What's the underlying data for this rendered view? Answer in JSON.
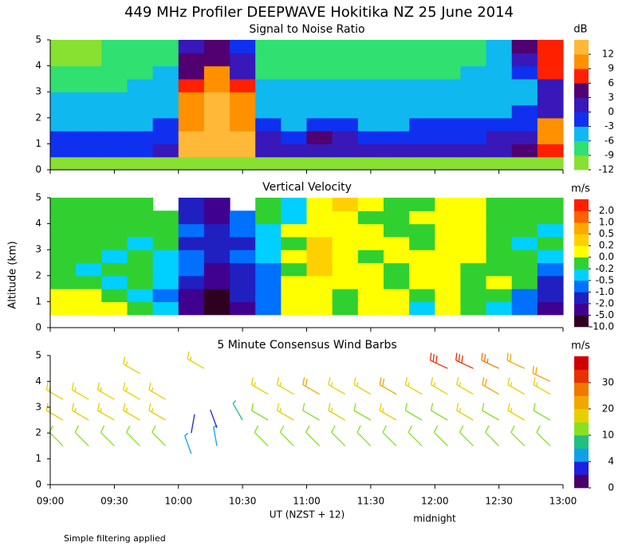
{
  "title": "449 MHz Profiler DEEPWAVE Hokitika NZ 25 June 2014",
  "y_label": "Altitude (km)",
  "x_label": "UT  (NZST + 12)",
  "annotation": "midnight",
  "note": "Simple filtering applied",
  "chart_data": [
    {
      "type": "heatmap",
      "title": "Signal to Noise Ratio",
      "unit": "dB",
      "xlim": [
        9,
        13
      ],
      "ylim": [
        0,
        5
      ],
      "xticks": [
        9,
        9.5,
        10,
        10.5,
        11,
        11.5,
        12,
        12.5,
        13
      ],
      "yticks": [
        0,
        1,
        2,
        3,
        4,
        5
      ],
      "x": [
        9.1,
        9.3,
        9.5,
        9.7,
        9.9,
        10.1,
        10.3,
        10.5,
        10.7,
        10.9,
        11.1,
        11.3,
        11.5,
        11.7,
        11.9,
        12.1,
        12.3,
        12.5,
        12.7,
        12.9
      ],
      "y": [
        0.25,
        0.75,
        1.25,
        1.75,
        2.25,
        2.75,
        3.25,
        3.75,
        4.25,
        4.75
      ],
      "values": [
        [
          -10,
          -10,
          -10,
          -10,
          -10,
          -10,
          -10,
          -10,
          -10,
          -10,
          -10,
          -10,
          -10,
          -10,
          -10,
          -10,
          -10,
          -10,
          -10,
          -10
        ],
        [
          -1,
          -1,
          -1,
          -1,
          0,
          12,
          13,
          13,
          2,
          1,
          2,
          1,
          0,
          0,
          1,
          1,
          1,
          2,
          3,
          6
        ],
        [
          -2,
          -2,
          -2,
          -2,
          -1,
          12,
          13,
          12,
          0,
          -1,
          4,
          0,
          -2,
          -2,
          -1,
          -1,
          -1,
          0,
          2,
          10
        ],
        [
          -4,
          -4,
          -4,
          -4,
          -3,
          11,
          12,
          11,
          -3,
          -4,
          -1,
          -3,
          -4,
          -4,
          -3,
          -3,
          -3,
          -3,
          -2,
          10
        ],
        [
          -5,
          -5,
          -5,
          -5,
          -4,
          10,
          12,
          10,
          -4,
          -5,
          -5,
          -5,
          -5,
          -5,
          -5,
          -5,
          -5,
          -4,
          -3,
          1
        ],
        [
          -5,
          -6,
          -5,
          -5,
          -4,
          9,
          12,
          9,
          -4,
          -5,
          -5,
          -5,
          -5,
          -5,
          -5,
          -5,
          -5,
          -5,
          -4,
          0
        ],
        [
          -7,
          -7,
          -7,
          -6,
          -5,
          7,
          11,
          6,
          -6,
          -6,
          -6,
          -6,
          -6,
          -6,
          -6,
          -6,
          -6,
          -5,
          -4,
          1
        ],
        [
          -8,
          -9,
          -8,
          -8,
          -6,
          4,
          9,
          2,
          -7,
          -8,
          -7,
          -7,
          -7,
          -7,
          -7,
          -7,
          -6,
          -5,
          -2,
          6
        ],
        [
          -10,
          -10,
          -9,
          -8,
          -7,
          3,
          5,
          0,
          -8,
          -8,
          -8,
          -8,
          -8,
          -8,
          -8,
          -8,
          -7,
          -6,
          2,
          8
        ],
        [
          -10,
          -10,
          -9,
          -8,
          -7,
          2,
          3,
          -1,
          -8,
          -8,
          -8,
          -8,
          -8,
          -8,
          -8,
          -8,
          -7,
          -6,
          4,
          8
        ]
      ],
      "colorbar": {
        "levels": [
          -12,
          -9,
          -6,
          -3,
          0,
          3,
          6,
          9,
          12
        ],
        "colors": [
          "#88e030",
          "#30e070",
          "#10b8f0",
          "#1030f0",
          "#3818b8",
          "#500070",
          "#ff2000",
          "#ff9000",
          "#ffb838"
        ],
        "ticks": [
          -12,
          -9,
          -6,
          -3,
          0,
          3,
          6,
          9,
          12
        ]
      }
    },
    {
      "type": "heatmap",
      "title": "Vertical Velocity",
      "unit": "m/s",
      "xlim": [
        9,
        13
      ],
      "ylim": [
        0,
        5
      ],
      "xticks": [
        9,
        9.5,
        10,
        10.5,
        11,
        11.5,
        12,
        12.5,
        13
      ],
      "yticks": [
        0,
        1,
        2,
        3,
        4,
        5
      ],
      "x": [
        9.1,
        9.3,
        9.5,
        9.7,
        9.9,
        10.1,
        10.3,
        10.5,
        10.7,
        10.9,
        11.1,
        11.3,
        11.5,
        11.7,
        11.9,
        12.1,
        12.3,
        12.5,
        12.7,
        12.9
      ],
      "y": [
        0.25,
        0.75,
        1.25,
        1.75,
        2.25,
        2.75,
        3.25,
        3.75,
        4.25,
        4.75
      ],
      "values": [
        [
          null,
          null,
          null,
          null,
          null,
          null,
          null,
          null,
          null,
          null,
          null,
          null,
          null,
          null,
          null,
          null,
          null,
          null,
          null,
          null
        ],
        [
          0.1,
          0.1,
          0.0,
          -0.1,
          -0.3,
          -3,
          -12,
          -3,
          -1,
          0.1,
          0.0,
          -0.1,
          0.1,
          0.0,
          -0.3,
          0.1,
          -0.1,
          -0.3,
          -1,
          -3
        ],
        [
          0.1,
          0.0,
          -0.1,
          -0.3,
          -0.6,
          -3,
          -6,
          -2,
          -0.7,
          0.1,
          0.1,
          -0.1,
          0.1,
          0.0,
          -0.1,
          0.1,
          -0.1,
          -0.1,
          -0.6,
          -2
        ],
        [
          -0.1,
          -0.1,
          -0.3,
          -0.1,
          -0.5,
          -1.5,
          -3,
          -1.5,
          -0.6,
          0.1,
          0.1,
          0.1,
          0.1,
          -0.1,
          0.1,
          0.1,
          -0.1,
          0.1,
          -0.1,
          -1.5
        ],
        [
          -0.1,
          -0.3,
          -0.1,
          -0.1,
          -0.3,
          -0.8,
          -3,
          -1.5,
          -0.6,
          -0.1,
          0.3,
          0.1,
          0.1,
          -0.1,
          0.1,
          0.1,
          -0.1,
          -0.1,
          -0.1,
          -0.8
        ],
        [
          -0.1,
          -0.1,
          -0.3,
          -0.1,
          -0.3,
          -0.8,
          -1.5,
          -0.8,
          -0.3,
          0.1,
          0.3,
          0.1,
          -0.1,
          0.1,
          0.1,
          0.1,
          0.1,
          -0.1,
          -0.1,
          -0.3
        ],
        [
          -0.1,
          -0.1,
          -0.1,
          -0.3,
          -0.1,
          -1.5,
          -2,
          -1.2,
          -0.3,
          -0.1,
          0.3,
          0.1,
          0.1,
          0.1,
          -0.1,
          0.1,
          0.1,
          -0.1,
          -0.3,
          -0.1
        ],
        [
          -0.1,
          -0.1,
          -0.1,
          -0.1,
          -0.1,
          -0.8,
          -1.5,
          -0.6,
          -0.3,
          0.1,
          0.1,
          0.1,
          0.1,
          -0.1,
          -0.1,
          0.1,
          0.1,
          -0.1,
          -0.1,
          -0.3
        ],
        [
          -0.1,
          -0.1,
          -0.1,
          -0.1,
          -0.1,
          -1.5,
          -3,
          -0.6,
          -0.1,
          -0.3,
          0.1,
          0.1,
          -0.1,
          -0.1,
          0.1,
          0.1,
          0.1,
          -0.1,
          -0.1,
          -0.1
        ],
        [
          -0.1,
          -0.1,
          -0.1,
          -0.1,
          null,
          -1.5,
          -3,
          null,
          -0.1,
          -0.3,
          0.1,
          0.3,
          0.1,
          -0.1,
          -0.1,
          0.1,
          0.1,
          -0.1,
          -0.1,
          -0.1
        ]
      ],
      "colorbar": {
        "levels": [
          -10,
          -5,
          -2,
          -1,
          -0.5,
          -0.2,
          0,
          0.2,
          0.5,
          1,
          2
        ],
        "colors": [
          "#300020",
          "#400090",
          "#2020c0",
          "#0070ff",
          "#00d0ff",
          "#30d030",
          "#ffff00",
          "#ffd000",
          "#ffa800",
          "#ff6000",
          "#ff2000"
        ],
        "ticks": [
          {
            "value": -10,
            "label": "-10.0"
          },
          {
            "value": -5,
            "label": "-5.0"
          },
          {
            "value": -2,
            "label": "-2.0"
          },
          {
            "value": -1,
            "label": "-1.0"
          },
          {
            "value": -0.5,
            "label": "-0.5"
          },
          {
            "value": -0.2,
            "label": "-0.2"
          },
          {
            "value": 0,
            "label": "0.0"
          },
          {
            "value": 0.2,
            "label": "0.2"
          },
          {
            "value": 0.5,
            "label": "0.5"
          },
          {
            "value": 1,
            "label": "1.0"
          },
          {
            "value": 2,
            "label": "2.0"
          }
        ]
      }
    },
    {
      "type": "barbs",
      "title": "5 Minute Consensus Wind Barbs",
      "unit": "m/s",
      "xlim": [
        9,
        13
      ],
      "ylim": [
        0,
        5
      ],
      "yticks": [
        0,
        1,
        2,
        3,
        4,
        5
      ],
      "xticks": [
        {
          "value": 9,
          "label": "09:00"
        },
        {
          "value": 9.5,
          "label": "09:30"
        },
        {
          "value": 10,
          "label": "10:00"
        },
        {
          "value": 10.5,
          "label": "10:30"
        },
        {
          "value": 11,
          "label": "11:00"
        },
        {
          "value": 11.5,
          "label": "11:30"
        },
        {
          "value": 12,
          "label": "12:00"
        },
        {
          "value": 12.5,
          "label": "12:30"
        },
        {
          "value": 13,
          "label": "13:00"
        }
      ],
      "x": [
        9.1,
        9.1,
        9.1,
        9.3,
        9.3,
        9.3,
        9.5,
        9.5,
        9.5,
        9.7,
        9.7,
        9.7,
        9.7,
        9.9,
        9.9,
        9.9,
        10.1,
        10.1,
        10.2,
        10.3,
        10.3,
        10.5,
        10.7,
        10.7,
        10.7,
        10.9,
        10.9,
        10.9,
        11.1,
        11.1,
        11.1,
        11.3,
        11.3,
        11.3,
        11.5,
        11.5,
        11.5,
        11.7,
        11.7,
        11.7,
        11.9,
        11.9,
        11.9,
        12.1,
        12.1,
        12.1,
        12.1,
        12.3,
        12.3,
        12.3,
        12.3,
        12.5,
        12.5,
        12.5,
        12.5,
        12.7,
        12.7,
        12.7,
        12.7,
        12.9,
        12.9,
        12.9,
        12.9
      ],
      "y": [
        1.5,
        2.5,
        3.3,
        1.5,
        2.5,
        3.3,
        1.5,
        2.5,
        3.3,
        1.5,
        2.5,
        3.3,
        4.3,
        1.5,
        2.5,
        3.3,
        1.2,
        2.0,
        4.5,
        1.5,
        2.2,
        2.5,
        1.5,
        2.5,
        3.5,
        1.5,
        2.5,
        3.5,
        1.5,
        2.5,
        3.5,
        1.5,
        2.5,
        3.5,
        1.5,
        2.5,
        3.5,
        1.5,
        2.5,
        3.5,
        1.5,
        2.5,
        3.5,
        1.5,
        2.5,
        3.5,
        4.5,
        1.5,
        2.5,
        3.5,
        4.5,
        1.5,
        2.5,
        3.5,
        4.5,
        1.5,
        2.5,
        3.5,
        4.5,
        1.5,
        2.5,
        3.5,
        4.0
      ],
      "speed": [
        10,
        16,
        18,
        11,
        16,
        18,
        10,
        17,
        18,
        10,
        16,
        18,
        18,
        11,
        16,
        18,
        5,
        3,
        16,
        5,
        2,
        7,
        10,
        14,
        19,
        11,
        15,
        19,
        10,
        14,
        20,
        10,
        15,
        19,
        11,
        14,
        19,
        10,
        15,
        20,
        10,
        14,
        19,
        10,
        14,
        19,
        30,
        11,
        15,
        19,
        30,
        10,
        14,
        20,
        29,
        10,
        15,
        19,
        24,
        11,
        14,
        19,
        20
      ],
      "direction": [
        315,
        300,
        300,
        315,
        300,
        300,
        315,
        300,
        300,
        315,
        300,
        300,
        300,
        315,
        300,
        300,
        340,
        10,
        300,
        350,
        340,
        330,
        315,
        300,
        300,
        315,
        300,
        300,
        315,
        300,
        300,
        315,
        300,
        300,
        315,
        300,
        300,
        315,
        300,
        300,
        315,
        300,
        300,
        315,
        300,
        300,
        295,
        315,
        300,
        300,
        295,
        315,
        300,
        300,
        295,
        315,
        300,
        300,
        295,
        315,
        300,
        300,
        295
      ],
      "colorbar": {
        "levels": [
          0,
          2,
          4,
          7,
          10,
          15,
          20,
          25,
          30,
          35
        ],
        "colors": [
          "#480068",
          "#2020e0",
          "#10a0e8",
          "#20c080",
          "#88e020",
          "#e8d000",
          "#f0a800",
          "#f07800",
          "#e83000",
          "#d00000"
        ],
        "ticks": [
          0,
          4,
          10,
          20,
          30
        ]
      }
    }
  ]
}
